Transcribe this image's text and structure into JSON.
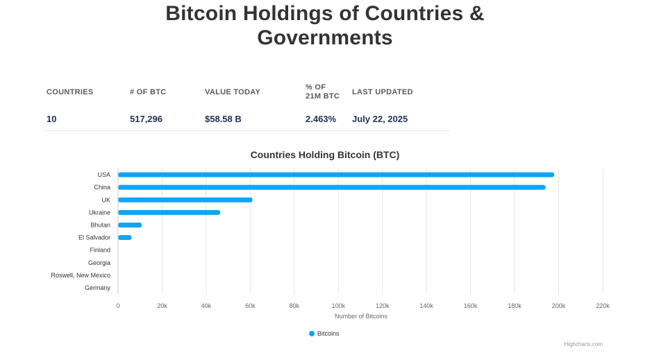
{
  "page": {
    "title_line1": "Bitcoin Holdings of Countries &",
    "title_line2": "Governments"
  },
  "stats": [
    {
      "label_line1": "COUNTRIES",
      "label_line2": "",
      "value": "10"
    },
    {
      "label_line1": "# OF BTC",
      "label_line2": "",
      "value": "517,296"
    },
    {
      "label_line1": "VALUE TODAY",
      "label_line2": "",
      "value": "$58.58 B"
    },
    {
      "label_line1": "% OF",
      "label_line2": "21M BTC",
      "value": "2.463%"
    },
    {
      "label_line1": "LAST UPDATED",
      "label_line2": "",
      "value": "July 22, 2025"
    }
  ],
  "chart_data": {
    "type": "bar",
    "orientation": "horizontal",
    "title": "Countries Holding Bitcoin (BTC)",
    "xlabel": "Number of Bitcoins",
    "ylabel": "",
    "categories": [
      "USA",
      "China",
      "UK",
      "Ukraine",
      "Bhutan",
      "El Salvador",
      "Finland",
      "Georgia",
      "Roswell, New Mexico",
      "Germany"
    ],
    "series": [
      {
        "name": "Bitcoins",
        "color": "#0ea5f5",
        "values": [
          198000,
          194000,
          61000,
          46351,
          10800,
          6100,
          90,
          66,
          0,
          0
        ]
      }
    ],
    "xlim": [
      0,
      220000
    ],
    "xticks": [
      0,
      20000,
      40000,
      60000,
      80000,
      100000,
      120000,
      140000,
      160000,
      180000,
      200000,
      220000
    ],
    "xtick_labels": [
      "0",
      "20k",
      "40k",
      "60k",
      "80k",
      "100k",
      "120k",
      "140k",
      "160k",
      "180k",
      "200k",
      "220k"
    ],
    "grid": "vertical",
    "legend": "bottom-center",
    "credits": "Highcharts.com"
  }
}
